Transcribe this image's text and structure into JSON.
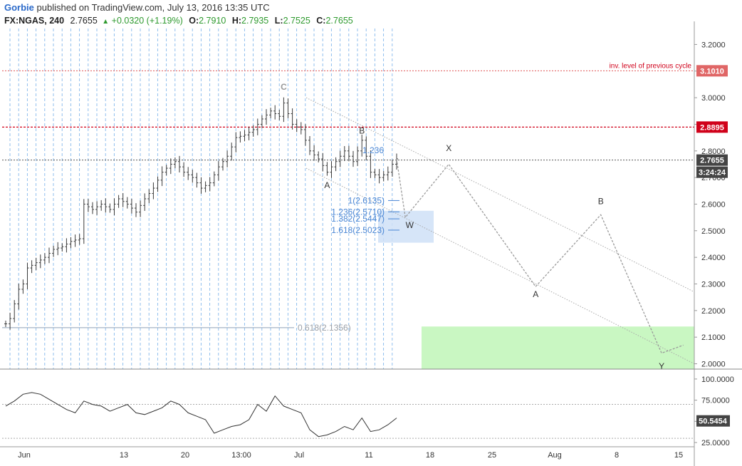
{
  "header": {
    "author": "Gorbie",
    "published": "published on TradingView.com, July 13, 2016 13:35 UTC",
    "symbol": "FX:NGAS, 240",
    "last": "2.7655",
    "change": "+0.0320 (+1.19%)",
    "o_label": "O:",
    "o": "2.7910",
    "h_label": "H:",
    "h": "2.7935",
    "l_label": "L:",
    "l": "2.7525",
    "c_label": "C:",
    "c": "2.7655"
  },
  "chart_data": [
    {
      "type": "ohlc",
      "symbol": "FX:NGAS",
      "timeframe": "240",
      "ylim": [
        1.98,
        3.26
      ],
      "yticks": [
        "2.0000",
        "2.1000",
        "2.2000",
        "2.3000",
        "2.4000",
        "2.5000",
        "2.6000",
        "2.7000",
        "2.8000",
        "2.9000",
        "3.0000",
        "3.1000",
        "3.2000"
      ],
      "xticks": [
        "Jun",
        "13",
        "20",
        "13:00",
        "Jul",
        "11",
        "18",
        "25",
        "Aug",
        "8",
        "15"
      ],
      "price_path": [
        [
          0,
          2.15
        ],
        [
          1,
          2.17
        ],
        [
          3,
          2.28
        ],
        [
          4,
          2.3
        ],
        [
          5,
          2.36
        ],
        [
          7,
          2.38
        ],
        [
          9,
          2.4
        ],
        [
          11,
          2.43
        ],
        [
          13,
          2.44
        ],
        [
          15,
          2.46
        ],
        [
          17,
          2.47
        ],
        [
          18,
          2.6
        ],
        [
          20,
          2.58
        ],
        [
          22,
          2.6
        ],
        [
          24,
          2.58
        ],
        [
          26,
          2.62
        ],
        [
          28,
          2.6
        ],
        [
          30,
          2.57
        ],
        [
          32,
          2.62
        ],
        [
          34,
          2.66
        ],
        [
          36,
          2.72
        ],
        [
          38,
          2.75
        ],
        [
          39,
          2.76
        ],
        [
          41,
          2.72
        ],
        [
          43,
          2.7
        ],
        [
          45,
          2.66
        ],
        [
          47,
          2.68
        ],
        [
          49,
          2.74
        ],
        [
          51,
          2.78
        ],
        [
          53,
          2.85
        ],
        [
          55,
          2.86
        ],
        [
          57,
          2.88
        ],
        [
          59,
          2.92
        ],
        [
          61,
          2.95
        ],
        [
          63,
          2.93
        ],
        [
          64,
          2.98
        ],
        [
          66,
          2.9
        ],
        [
          68,
          2.88
        ],
        [
          70,
          2.8
        ],
        [
          72,
          2.77
        ],
        [
          74,
          2.72
        ],
        [
          76,
          2.76
        ],
        [
          78,
          2.8
        ],
        [
          80,
          2.76
        ],
        [
          82,
          2.84
        ],
        [
          84,
          2.72
        ],
        [
          86,
          2.7
        ],
        [
          88,
          2.72
        ],
        [
          89,
          2.75
        ],
        [
          90,
          2.77
        ]
      ],
      "levels": [
        {
          "price": 3.101,
          "label": "3.1010",
          "text": "inv. level of previous cycle",
          "color": "#e05555"
        },
        {
          "price": 2.8895,
          "label": "2.8895",
          "color": "#d0021b"
        },
        {
          "price": 2.7655,
          "label": "2.7655",
          "color": "#555555"
        }
      ],
      "countdown": "3:24:24",
      "fib_labels": [
        {
          "text": "1.236",
          "price": 2.8
        },
        {
          "text": "1(2.6135)",
          "price": 2.6135
        },
        {
          "text": "1.236(2.5710)",
          "price": 2.571
        },
        {
          "text": "1.382(2.5447)",
          "price": 2.5447
        },
        {
          "text": "1.618(2.5023)",
          "price": 2.5023
        },
        {
          "text": "0.618(2.1356)",
          "price": 2.1356
        }
      ],
      "wave_labels": [
        {
          "text": "C",
          "bar": 64,
          "price": 3.03
        },
        {
          "text": "B",
          "bar": 82,
          "price": 2.865
        },
        {
          "text": "A",
          "bar": 74,
          "price": 2.66
        },
        {
          "text": "W",
          "bar": 93,
          "price": 2.51
        },
        {
          "text": "X",
          "bar": 102,
          "price": 2.8
        },
        {
          "text": "A",
          "bar": 122,
          "price": 2.25
        },
        {
          "text": "B",
          "bar": 137,
          "price": 2.6
        },
        {
          "text": "Y",
          "bar": 151,
          "price": 1.98
        }
      ],
      "projection_path": [
        [
          90,
          2.77
        ],
        [
          92,
          2.55
        ],
        [
          102,
          2.75
        ],
        [
          122,
          2.29
        ],
        [
          137,
          2.56
        ],
        [
          151,
          2.04
        ],
        [
          156,
          2.07
        ]
      ]
    },
    {
      "type": "line",
      "name": "RSI",
      "ylim": [
        20,
        110
      ],
      "yticks": [
        "25.0000",
        "50.0000",
        "75.0000",
        "100.0000"
      ],
      "reference_lines": [
        30,
        70
      ],
      "last_value": "50.5454",
      "values_path": [
        [
          0,
          68
        ],
        [
          2,
          74
        ],
        [
          4,
          82
        ],
        [
          6,
          84
        ],
        [
          8,
          82
        ],
        [
          10,
          76
        ],
        [
          12,
          70
        ],
        [
          14,
          64
        ],
        [
          16,
          60
        ],
        [
          18,
          74
        ],
        [
          20,
          70
        ],
        [
          22,
          68
        ],
        [
          24,
          62
        ],
        [
          26,
          66
        ],
        [
          28,
          70
        ],
        [
          30,
          60
        ],
        [
          32,
          58
        ],
        [
          34,
          62
        ],
        [
          36,
          66
        ],
        [
          38,
          74
        ],
        [
          40,
          70
        ],
        [
          42,
          60
        ],
        [
          44,
          56
        ],
        [
          46,
          52
        ],
        [
          48,
          36
        ],
        [
          50,
          40
        ],
        [
          52,
          44
        ],
        [
          54,
          46
        ],
        [
          56,
          52
        ],
        [
          58,
          70
        ],
        [
          60,
          62
        ],
        [
          62,
          80
        ],
        [
          64,
          68
        ],
        [
          66,
          64
        ],
        [
          68,
          60
        ],
        [
          70,
          40
        ],
        [
          72,
          32
        ],
        [
          74,
          34
        ],
        [
          76,
          38
        ],
        [
          78,
          44
        ],
        [
          80,
          40
        ],
        [
          82,
          54
        ],
        [
          84,
          38
        ],
        [
          86,
          40
        ],
        [
          88,
          46
        ],
        [
          90,
          54
        ]
      ]
    }
  ]
}
